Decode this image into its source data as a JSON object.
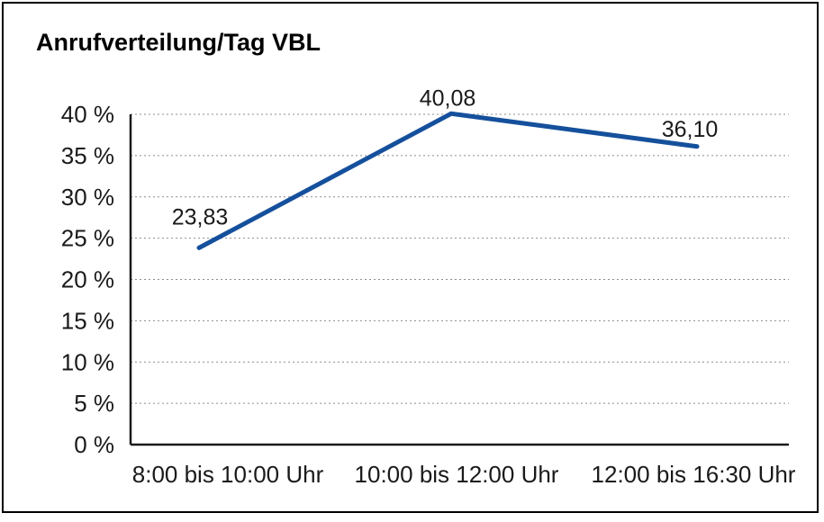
{
  "chart_data": {
    "type": "line",
    "title": "Anrufverteilung/Tag VBL",
    "categories": [
      "8:00 bis 10:00 Uhr",
      "10:00 bis 12:00 Uhr",
      "12:00 bis 16:30 Uhr"
    ],
    "values": [
      23.83,
      40.08,
      36.1
    ],
    "point_labels": [
      "23,83",
      "40,08",
      "36,10"
    ],
    "y_axis": {
      "min": 0,
      "max": 40,
      "tick_step": 5,
      "tick_labels": [
        "0 %",
        "5 %",
        "10 %",
        "15 %",
        "20 %",
        "25 %",
        "30 %",
        "35 %",
        "40 %"
      ],
      "unit": "%"
    },
    "xlabel": "",
    "ylabel": "",
    "legend": "none",
    "grid": "horizontal-dotted",
    "colors": {
      "line": "#15509C",
      "gridline": "#8c8c8c",
      "axis": "#1a1a1a",
      "text": "#000000",
      "background": "#ffffff",
      "frame_border": "#000000"
    }
  }
}
